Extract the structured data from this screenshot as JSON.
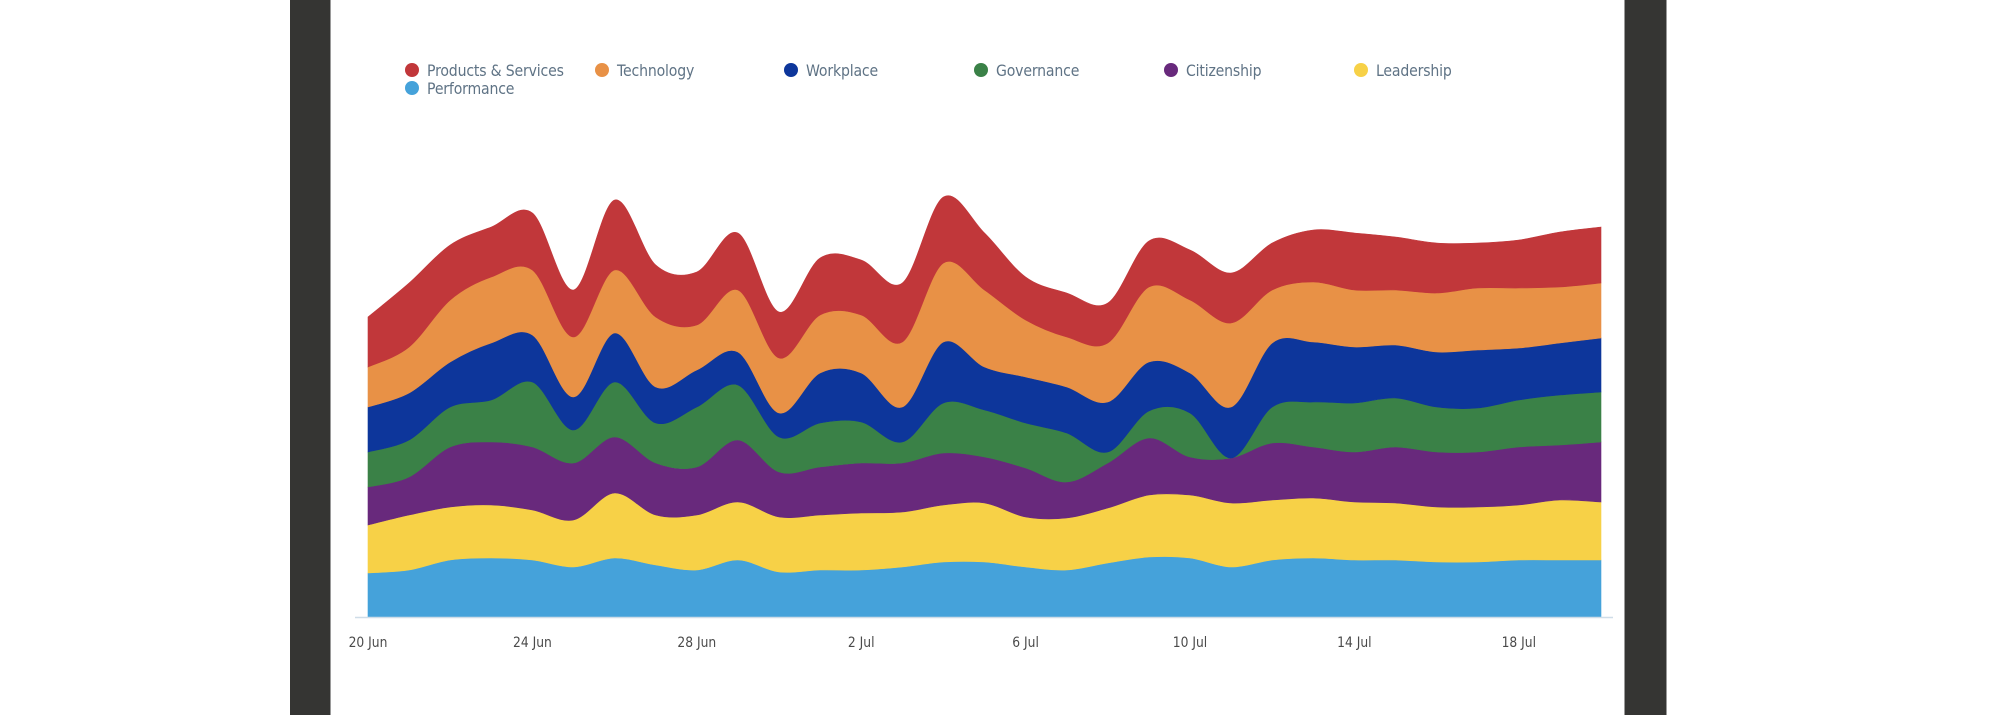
{
  "chart_data": {
    "type": "area",
    "stacking": "stacked (streamgraph-style, smoothed)",
    "title": "",
    "xlabel": "",
    "ylabel": "",
    "legend_position": "top-left",
    "grid": false,
    "x": [
      "20 Jun",
      "21 Jun",
      "22 Jun",
      "23 Jun",
      "24 Jun",
      "25 Jun",
      "26 Jun",
      "27 Jun",
      "28 Jun",
      "29 Jun",
      "30 Jun",
      "1 Jul",
      "2 Jul",
      "3 Jul",
      "4 Jul",
      "5 Jul",
      "6 Jul",
      "7 Jul",
      "8 Jul",
      "9 Jul",
      "10 Jul",
      "11 Jul",
      "12 Jul",
      "13 Jul",
      "14 Jul",
      "15 Jul",
      "16 Jul",
      "17 Jul",
      "18 Jul",
      "19 Jul",
      "20 Jul"
    ],
    "x_tick_labels": [
      "20 Jun",
      "24 Jun",
      "28 Jun",
      "2 Jul",
      "6 Jul",
      "10 Jul",
      "14 Jul",
      "18 Jul"
    ],
    "x_tick_indices": [
      0,
      4,
      8,
      12,
      16,
      20,
      24,
      28
    ],
    "series": [
      {
        "name": "Performance",
        "color": "#45a2da",
        "values": [
          44,
          47,
          57,
          59,
          57,
          50,
          59,
          52,
          47,
          57,
          45,
          47,
          47,
          50,
          55,
          55,
          50,
          47,
          54,
          60,
          59,
          50,
          57,
          59,
          57,
          57,
          55,
          55,
          57,
          57,
          57
        ]
      },
      {
        "name": "Leadership",
        "color": "#f7d147",
        "values": [
          48,
          55,
          53,
          53,
          50,
          47,
          65,
          50,
          55,
          58,
          55,
          55,
          57,
          55,
          57,
          59,
          50,
          52,
          55,
          62,
          63,
          64,
          60,
          60,
          58,
          57,
          55,
          55,
          55,
          60,
          58
        ]
      },
      {
        "name": "Citizenship",
        "color": "#68297c",
        "values": [
          38,
          38,
          60,
          63,
          63,
          57,
          56,
          52,
          48,
          62,
          45,
          48,
          50,
          49,
          52,
          46,
          49,
          36,
          45,
          57,
          38,
          45,
          57,
          51,
          50,
          56,
          55,
          55,
          58,
          55,
          60
        ]
      },
      {
        "name": "Governance",
        "color": "#3a8147",
        "values": [
          35,
          37,
          40,
          42,
          65,
          33,
          55,
          40,
          60,
          55,
          35,
          44,
          41,
          21,
          50,
          47,
          45,
          49,
          11,
          27,
          44,
          0,
          36,
          45,
          49,
          49,
          45,
          44,
          47,
          50,
          50
        ]
      },
      {
        "name": "Workplace",
        "color": "#0d369b",
        "values": [
          45,
          47,
          45,
          57,
          47,
          33,
          49,
          36,
          37,
          33,
          24,
          50,
          49,
          35,
          61,
          43,
          46,
          46,
          50,
          49,
          40,
          51,
          64,
          60,
          56,
          53,
          55,
          58,
          52,
          52,
          54
        ]
      },
      {
        "name": "Technology",
        "color": "#e89146",
        "values": [
          40,
          46,
          62,
          66,
          65,
          60,
          63,
          70,
          45,
          62,
          55,
          58,
          58,
          65,
          79,
          77,
          57,
          50,
          59,
          75,
          73,
          84,
          53,
          60,
          57,
          55,
          59,
          62,
          60,
          56,
          55
        ]
      },
      {
        "name": "Products & Services",
        "color": "#c1373a",
        "values": [
          50,
          64,
          55,
          50,
          57,
          47,
          70,
          52,
          53,
          57,
          46,
          57,
          55,
          59,
          66,
          57,
          43,
          44,
          40,
          46,
          50,
          50,
          47,
          52,
          57,
          53,
          50,
          45,
          48,
          55,
          56
        ]
      }
    ],
    "legend": [
      {
        "name": "Products & Services",
        "color": "#c1373a"
      },
      {
        "name": "Technology",
        "color": "#e89146"
      },
      {
        "name": "Workplace",
        "color": "#0d369b"
      },
      {
        "name": "Governance",
        "color": "#3a8147"
      },
      {
        "name": "Citizenship",
        "color": "#68297c"
      },
      {
        "name": "Leadership",
        "color": "#f7d147"
      },
      {
        "name": "Performance",
        "color": "#45a2da"
      }
    ],
    "ylim": [
      0,
      440
    ]
  },
  "colors": {
    "frame": "#353533",
    "axis_line": "#cfdde8",
    "legend_text": "#5f7385",
    "tick_text": "#4a4a4a"
  }
}
